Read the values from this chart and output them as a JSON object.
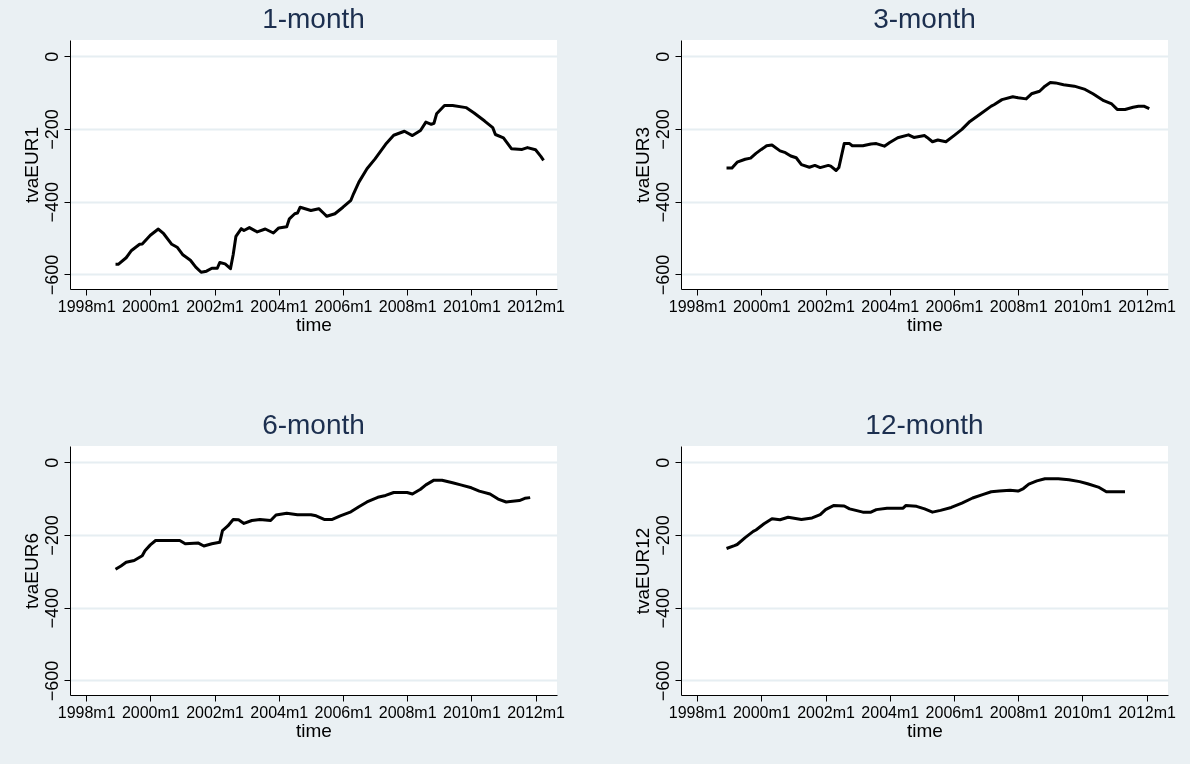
{
  "chart_data": [
    {
      "type": "line",
      "title": "1-month",
      "xlabel": "time",
      "ylabel": "tvaEUR1",
      "grid": "y",
      "xlim": [
        "1997-07",
        "2012-09"
      ],
      "ylim": [
        -640,
        45
      ],
      "xticks": [
        {
          "value": "1998-01",
          "label": "1998m1"
        },
        {
          "value": "2000-01",
          "label": "2000m1"
        },
        {
          "value": "2002-01",
          "label": "2002m1"
        },
        {
          "value": "2004-01",
          "label": "2004m1"
        },
        {
          "value": "2006-01",
          "label": "2006m1"
        },
        {
          "value": "2008-01",
          "label": "2008m1"
        },
        {
          "value": "2010-01",
          "label": "2010m1"
        },
        {
          "value": "2012-01",
          "label": "2012m1"
        }
      ],
      "yticks": [
        0,
        -200,
        -400,
        -600
      ],
      "x": [
        "1998-12",
        "1999-01",
        "1999-04",
        "1999-06",
        "1999-09",
        "1999-10",
        "2000-01",
        "2000-04",
        "2000-06",
        "2000-09",
        "2000-11",
        "2001-01",
        "2001-04",
        "2001-06",
        "2001-08",
        "2001-10",
        "2001-12",
        "2002-02",
        "2002-03",
        "2002-05",
        "2002-07",
        "2002-08",
        "2002-09",
        "2002-11",
        "2002-12",
        "2003-02",
        "2003-05",
        "2003-08",
        "2003-11",
        "2004-01",
        "2004-04",
        "2004-05",
        "2004-07",
        "2004-08",
        "2004-09",
        "2005-01",
        "2005-04",
        "2005-06",
        "2005-07",
        "2005-10",
        "2006-01",
        "2006-04",
        "2006-05",
        "2006-07",
        "2006-10",
        "2007-01",
        "2007-05",
        "2007-08",
        "2007-12",
        "2008-03",
        "2008-06",
        "2008-08",
        "2008-10",
        "2008-11",
        "2008-12",
        "2009-03",
        "2009-06",
        "2009-11",
        "2010-02",
        "2010-06",
        "2010-09",
        "2010-10",
        "2011-01",
        "2011-04",
        "2011-08",
        "2011-10",
        "2012-01",
        "2012-03",
        "2012-04"
      ],
      "series": [
        {
          "color": "#000000",
          "values": [
            -572,
            -572,
            -554,
            -534,
            -517,
            -516,
            -492,
            -475,
            -488,
            -517,
            -525,
            -545,
            -561,
            -580,
            -594,
            -591,
            -583,
            -583,
            -567,
            -571,
            -584,
            -545,
            -495,
            -474,
            -479,
            -471,
            -483,
            -475,
            -486,
            -472,
            -469,
            -447,
            -433,
            -431,
            -415,
            -424,
            -419,
            -433,
            -440,
            -433,
            -415,
            -396,
            -378,
            -346,
            -309,
            -282,
            -242,
            -217,
            -206,
            -218,
            -204,
            -181,
            -187,
            -184,
            -158,
            -135,
            -135,
            -141,
            -156,
            -178,
            -196,
            -215,
            -224,
            -254,
            -256,
            -251,
            -257,
            -275,
            -286
          ]
        }
      ]
    },
    {
      "type": "line",
      "title": "3-month",
      "xlabel": "time",
      "ylabel": "tvaEUR3",
      "grid": "y",
      "xlim": [
        "1997-07",
        "2012-09"
      ],
      "ylim": [
        -640,
        45
      ],
      "xticks": [
        {
          "value": "1998-01",
          "label": "1998m1"
        },
        {
          "value": "2000-01",
          "label": "2000m1"
        },
        {
          "value": "2002-01",
          "label": "2002m1"
        },
        {
          "value": "2004-01",
          "label": "2004m1"
        },
        {
          "value": "2006-01",
          "label": "2006m1"
        },
        {
          "value": "2008-01",
          "label": "2008m1"
        },
        {
          "value": "2010-01",
          "label": "2010m1"
        },
        {
          "value": "2012-01",
          "label": "2012m1"
        }
      ],
      "yticks": [
        0,
        -200,
        -400,
        -600
      ],
      "x": [
        "1998-12",
        "1999-02",
        "1999-04",
        "1999-07",
        "1999-09",
        "1999-11",
        "2000-01",
        "2000-03",
        "2000-05",
        "2000-08",
        "2000-10",
        "2000-12",
        "2001-02",
        "2001-04",
        "2001-07",
        "2001-09",
        "2001-11",
        "2002-02",
        "2002-03",
        "2002-05",
        "2002-06",
        "2002-08",
        "2002-10",
        "2002-11",
        "2003-03",
        "2003-06",
        "2003-08",
        "2003-11",
        "2004-01",
        "2004-04",
        "2004-08",
        "2004-10",
        "2005-02",
        "2005-03",
        "2005-05",
        "2005-07",
        "2005-10",
        "2006-01",
        "2006-04",
        "2006-07",
        "2006-11",
        "2007-03",
        "2007-04",
        "2007-07",
        "2007-11",
        "2008-01",
        "2008-04",
        "2008-06",
        "2008-09",
        "2008-11",
        "2009-01",
        "2009-03",
        "2009-06",
        "2009-10",
        "2010-02",
        "2010-05",
        "2010-09",
        "2010-12",
        "2011-02",
        "2011-05",
        "2011-08",
        "2011-10",
        "2011-12",
        "2012-02"
      ],
      "series": [
        {
          "color": "#000000",
          "values": [
            -307,
            -307,
            -291,
            -283,
            -280,
            -267,
            -256,
            -246,
            -244,
            -260,
            -265,
            -274,
            -279,
            -298,
            -305,
            -300,
            -306,
            -300,
            -302,
            -314,
            -306,
            -240,
            -240,
            -246,
            -246,
            -241,
            -240,
            -247,
            -237,
            -224,
            -216,
            -223,
            -218,
            -223,
            -235,
            -230,
            -235,
            -218,
            -201,
            -179,
            -158,
            -137,
            -133,
            -119,
            -111,
            -114,
            -117,
            -103,
            -96,
            -82,
            -72,
            -73,
            -78,
            -82,
            -91,
            -103,
            -122,
            -131,
            -146,
            -146,
            -140,
            -137,
            -137,
            -144
          ]
        }
      ]
    },
    {
      "type": "line",
      "title": "6-month",
      "xlabel": "time",
      "ylabel": "tvaEUR6",
      "grid": "y",
      "xlim": [
        "1997-07",
        "2012-09"
      ],
      "ylim": [
        -640,
        45
      ],
      "xticks": [
        {
          "value": "1998-01",
          "label": "1998m1"
        },
        {
          "value": "2000-01",
          "label": "2000m1"
        },
        {
          "value": "2002-01",
          "label": "2002m1"
        },
        {
          "value": "2004-01",
          "label": "2004m1"
        },
        {
          "value": "2006-01",
          "label": "2006m1"
        },
        {
          "value": "2008-01",
          "label": "2008m1"
        },
        {
          "value": "2010-01",
          "label": "2010m1"
        },
        {
          "value": "2012-01",
          "label": "2012m1"
        }
      ],
      "yticks": [
        0,
        -200,
        -400,
        -600
      ],
      "x": [
        "1998-12",
        "1999-02",
        "1999-04",
        "1999-07",
        "1999-10",
        "1999-11",
        "2000-01",
        "2000-03",
        "2000-07",
        "2000-12",
        "2001-02",
        "2001-07",
        "2001-09",
        "2001-12",
        "2002-03",
        "2002-04",
        "2002-06",
        "2002-08",
        "2002-10",
        "2002-12",
        "2003-03",
        "2003-06",
        "2003-10",
        "2003-12",
        "2004-04",
        "2004-08",
        "2005-01",
        "2005-03",
        "2005-06",
        "2005-09",
        "2005-12",
        "2006-04",
        "2006-07",
        "2006-10",
        "2007-02",
        "2007-05",
        "2007-08",
        "2008-01",
        "2008-03",
        "2008-06",
        "2008-08",
        "2008-11",
        "2009-02",
        "2009-06",
        "2009-09",
        "2010-01",
        "2010-04",
        "2010-08",
        "2010-11",
        "2011-02",
        "2011-07",
        "2011-09",
        "2011-11"
      ],
      "series": [
        {
          "color": "#000000",
          "values": [
            -294,
            -285,
            -275,
            -270,
            -257,
            -243,
            -227,
            -215,
            -215,
            -215,
            -224,
            -222,
            -230,
            -224,
            -220,
            -188,
            -175,
            -157,
            -158,
            -168,
            -160,
            -157,
            -160,
            -145,
            -140,
            -144,
            -144,
            -147,
            -157,
            -157,
            -147,
            -136,
            -122,
            -109,
            -96,
            -91,
            -83,
            -83,
            -87,
            -74,
            -62,
            -49,
            -49,
            -56,
            -62,
            -70,
            -79,
            -87,
            -101,
            -109,
            -105,
            -99,
            -97
          ]
        }
      ]
    },
    {
      "type": "line",
      "title": "12-month",
      "xlabel": "time",
      "ylabel": "tvaEUR12",
      "grid": "y",
      "xlim": [
        "1997-07",
        "2012-09"
      ],
      "ylim": [
        -640,
        45
      ],
      "xticks": [
        {
          "value": "1998-01",
          "label": "1998m1"
        },
        {
          "value": "2000-01",
          "label": "2000m1"
        },
        {
          "value": "2002-01",
          "label": "2002m1"
        },
        {
          "value": "2004-01",
          "label": "2004m1"
        },
        {
          "value": "2006-01",
          "label": "2006m1"
        },
        {
          "value": "2008-01",
          "label": "2008m1"
        },
        {
          "value": "2010-01",
          "label": "2010m1"
        },
        {
          "value": "2012-01",
          "label": "2012m1"
        }
      ],
      "yticks": [
        0,
        -200,
        -400,
        -600
      ],
      "x": [
        "1998-12",
        "1999-03",
        "1999-04",
        "1999-07",
        "1999-10",
        "1999-11",
        "2000-02",
        "2000-05",
        "2000-08",
        "2000-11",
        "2001-04",
        "2001-08",
        "2001-11",
        "2002-01",
        "2002-04",
        "2002-08",
        "2002-10",
        "2003-03",
        "2003-06",
        "2003-08",
        "2003-12",
        "2004-06",
        "2004-07",
        "2004-11",
        "2005-02",
        "2005-05",
        "2005-08",
        "2005-12",
        "2006-04",
        "2006-08",
        "2006-12",
        "2007-03",
        "2007-06",
        "2007-10",
        "2008-01",
        "2008-03",
        "2008-05",
        "2008-08",
        "2008-11",
        "2009-04",
        "2009-08",
        "2009-12",
        "2010-03",
        "2010-07",
        "2010-10",
        "2011-02",
        "2011-05"
      ],
      "series": [
        {
          "color": "#000000",
          "values": [
            -237,
            -229,
            -226,
            -207,
            -190,
            -186,
            -169,
            -155,
            -158,
            -151,
            -157,
            -153,
            -144,
            -130,
            -119,
            -120,
            -128,
            -137,
            -137,
            -130,
            -126,
            -126,
            -119,
            -121,
            -128,
            -137,
            -132,
            -124,
            -112,
            -98,
            -88,
            -81,
            -79,
            -77,
            -79,
            -72,
            -60,
            -51,
            -45,
            -45,
            -48,
            -53,
            -59,
            -68,
            -81,
            -81,
            -81
          ]
        }
      ]
    }
  ]
}
